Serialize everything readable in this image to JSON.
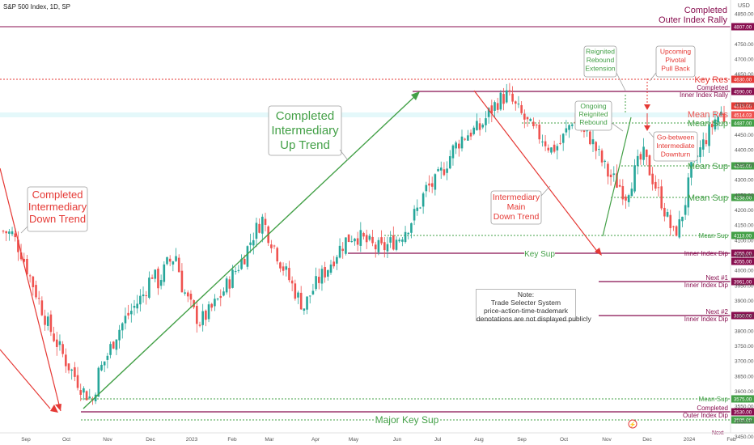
{
  "header": {
    "symbol_line": "S&P 500 Index, 1D, SP",
    "currency": "USD"
  },
  "chart_data": {
    "type": "candlestick",
    "ylim": [
      3460,
      4995
    ],
    "x_ticks": [
      "Sep",
      "Oct",
      "Nov",
      "Dec",
      "2023",
      "Feb",
      "Mar",
      "Apr",
      "May",
      "Jun",
      "Jul",
      "Aug",
      "Sep",
      "Oct",
      "Nov",
      "Dec",
      "2024",
      "Feb"
    ],
    "y_ticks": [
      "4950.00",
      "4850.00",
      "4750.00",
      "4700.00",
      "4650.00",
      "4550.00",
      "4450.00",
      "4400.00",
      "4350.00",
      "4300.00",
      "4250.00",
      "4200.00",
      "4150.00",
      "4100.00",
      "4050.00",
      "4000.00",
      "3950.00",
      "3900.00",
      "3850.00",
      "3800.00",
      "3750.00",
      "3700.00",
      "3650.00",
      "3600.00",
      "3550.00",
      "3500.00",
      "3450.00"
    ],
    "price_path": [
      [
        0,
        4130
      ],
      [
        3,
        4120
      ],
      [
        6,
        4060
      ],
      [
        9,
        3980
      ],
      [
        12,
        3900
      ],
      [
        15,
        3820
      ],
      [
        18,
        3760
      ],
      [
        21,
        3700
      ],
      [
        24,
        3650
      ],
      [
        27,
        3600
      ],
      [
        30,
        3570
      ],
      [
        32,
        3660
      ],
      [
        35,
        3720
      ],
      [
        38,
        3790
      ],
      [
        41,
        3840
      ],
      [
        44,
        3880
      ],
      [
        47,
        3920
      ],
      [
        50,
        3990
      ],
      [
        52,
        3960
      ],
      [
        55,
        4020
      ],
      [
        58,
        4050
      ],
      [
        60,
        3950
      ],
      [
        62,
        3900
      ],
      [
        64,
        3860
      ],
      [
        66,
        3830
      ],
      [
        69,
        3860
      ],
      [
        72,
        3900
      ],
      [
        75,
        3950
      ],
      [
        78,
        4000
      ],
      [
        81,
        4050
      ],
      [
        84,
        4120
      ],
      [
        87,
        4170
      ],
      [
        89,
        4120
      ],
      [
        91,
        4080
      ],
      [
        93,
        4030
      ],
      [
        95,
        3990
      ],
      [
        97,
        3950
      ],
      [
        99,
        3910
      ],
      [
        101,
        3880
      ],
      [
        103,
        3920
      ],
      [
        106,
        3970
      ],
      [
        109,
        4010
      ],
      [
        112,
        4060
      ],
      [
        115,
        4100
      ],
      [
        118,
        4120
      ],
      [
        121,
        4100
      ],
      [
        124,
        4080
      ],
      [
        127,
        4070
      ],
      [
        130,
        4090
      ],
      [
        133,
        4110
      ],
      [
        136,
        4150
      ],
      [
        139,
        4200
      ],
      [
        142,
        4270
      ],
      [
        145,
        4290
      ],
      [
        148,
        4340
      ],
      [
        151,
        4400
      ],
      [
        154,
        4440
      ],
      [
        157,
        4460
      ],
      [
        160,
        4470
      ],
      [
        163,
        4520
      ],
      [
        166,
        4560
      ],
      [
        169,
        4580
      ],
      [
        170,
        4570
      ],
      [
        172,
        4540
      ],
      [
        175,
        4500
      ],
      [
        178,
        4460
      ],
      [
        181,
        4440
      ],
      [
        184,
        4400
      ],
      [
        187,
        4420
      ],
      [
        189,
        4460
      ],
      [
        191,
        4500
      ],
      [
        193,
        4480
      ],
      [
        195,
        4450
      ],
      [
        197,
        4440
      ],
      [
        199,
        4400
      ],
      [
        201,
        4360
      ],
      [
        203,
        4320
      ],
      [
        205,
        4300
      ],
      [
        207,
        4280
      ],
      [
        209,
        4250
      ],
      [
        211,
        4300
      ],
      [
        213,
        4350
      ],
      [
        215,
        4380
      ],
      [
        217,
        4330
      ],
      [
        219,
        4280
      ],
      [
        221,
        4230
      ],
      [
        223,
        4170
      ],
      [
        225,
        4120
      ],
      [
        227,
        4150
      ],
      [
        229,
        4230
      ],
      [
        231,
        4330
      ],
      [
        233,
        4380
      ],
      [
        235,
        4420
      ],
      [
        237,
        4460
      ],
      [
        239,
        4500
      ],
      [
        241,
        4520
      ],
      [
        242,
        4505
      ]
    ],
    "levels": [
      {
        "price": 4807,
        "label": "4807.00",
        "note_upper": "Completed",
        "note_lower": "Outer Index Rally",
        "color": "#880e4f"
      },
      {
        "price": 4630,
        "label": "4630.00",
        "note_upper": "Key Res",
        "note_lower": "",
        "color": "#e53935"
      },
      {
        "price": 4590,
        "label": "4590.00",
        "note_upper": "Completed",
        "note_lower": "Inner Index Rally",
        "color": "#880e4f"
      },
      {
        "price": 4515,
        "label": "4515.00",
        "note_upper": "",
        "note_lower": "",
        "color": "#e53935"
      },
      {
        "price": 4514.03,
        "label": "4514.03",
        "note_upper": "Mean Res",
        "note_lower": "",
        "color": "#ef5350"
      },
      {
        "price": 4487,
        "label": "4487.00",
        "note_upper": "Mean Sup",
        "note_lower": "",
        "color": "#43a047"
      },
      {
        "price": 4345,
        "label": "4345.00",
        "note_upper": "Mean Sup",
        "note_lower": "",
        "color": "#43a047"
      },
      {
        "price": 4238,
        "label": "4238.00",
        "note_upper": "Mean Sup",
        "note_lower": "",
        "color": "#43a047"
      },
      {
        "price": 4113,
        "label": "4113.00",
        "note_upper": "Mean Sup",
        "note_lower": "",
        "color": "#43a047"
      },
      {
        "price": 4055,
        "label": "4055.00",
        "note_upper": "Inner Index Dip",
        "note_lower": "",
        "color": "#880e4f"
      },
      {
        "price": 4055,
        "label": "4055.00",
        "note_upper": "",
        "note_lower": "",
        "color": "#880e4f"
      },
      {
        "price": 3961,
        "label": "3961.00",
        "note_upper": "Next #1",
        "note_lower": "Inner Index Dip",
        "color": "#880e4f"
      },
      {
        "price": 3850,
        "label": "3850.00",
        "note_upper": "Next #2",
        "note_lower": "Inner Index Dip",
        "color": "#880e4f"
      },
      {
        "price": 3575,
        "label": "3575.00",
        "note_upper": "Mean Sup",
        "note_lower": "",
        "color": "#43a047"
      },
      {
        "price": 3530,
        "label": "3530.00",
        "note_upper": "Completed",
        "note_lower": "Outer Index Dip",
        "color": "#880e4f"
      },
      {
        "price": 3505,
        "label": "3505.00",
        "note_upper": "",
        "note_lower": "",
        "color": "#43a047"
      }
    ],
    "annotations": {
      "completed_down_trend": [
        "Completed",
        "Intermediary",
        "Down Trend"
      ],
      "completed_up_trend": [
        "Completed",
        "Intermediary",
        "Up Trend"
      ],
      "intermediary_main_down": [
        "Intermediary",
        "Main",
        "Down Trend"
      ],
      "ongoing_reignited": [
        "Ongoing",
        "Reignited",
        "Rebound"
      ],
      "reignited_extension": [
        "Reignited",
        "Rebound",
        "Extension"
      ],
      "upcoming_pivotal": [
        "Upcoming",
        "Pivotal",
        "Pull Back"
      ],
      "go_between": [
        "Go-between",
        "Intermediate",
        "Downturn"
      ],
      "key_sup": "Key Sup",
      "major_key_sup": "Major Key Sup",
      "next_partial": "Next"
    },
    "note": [
      "Note:",
      "Trade Selecter System",
      "price-action-time-trademark",
      "denotations are not displayed publicly"
    ]
  }
}
